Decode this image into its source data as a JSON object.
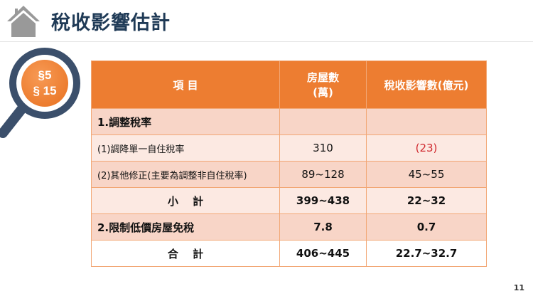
{
  "title": "稅收影響估計",
  "badge": {
    "line1": "§5",
    "line2": "§ 15"
  },
  "table": {
    "headers": [
      "項 目",
      "房屋數\n(萬)",
      "稅收影響數(億元)"
    ],
    "header_col2_line1": "房屋數",
    "header_col2_line2": "(萬)",
    "rows": [
      {
        "item": "1.調整稅率",
        "houses": "",
        "impact": ""
      },
      {
        "item": "(1)調降單一自住稅率",
        "houses": "310",
        "impact": "(23)"
      },
      {
        "item": "(2)其他修正(主要為調整非自住稅率)",
        "houses": "89~128",
        "impact": "45~55"
      },
      {
        "item": "小　 計",
        "houses": "399~438",
        "impact": "22~32"
      },
      {
        "item": "2.限制低價房屋免稅",
        "houses": "7.8",
        "impact": "0.7"
      },
      {
        "item": "合　 計",
        "houses": "406~445",
        "impact": "22.7~32.7"
      }
    ]
  },
  "colors": {
    "header": "#ed7d31",
    "negative": "#d0282e",
    "title": "#1f3a56"
  },
  "page_number": "11"
}
